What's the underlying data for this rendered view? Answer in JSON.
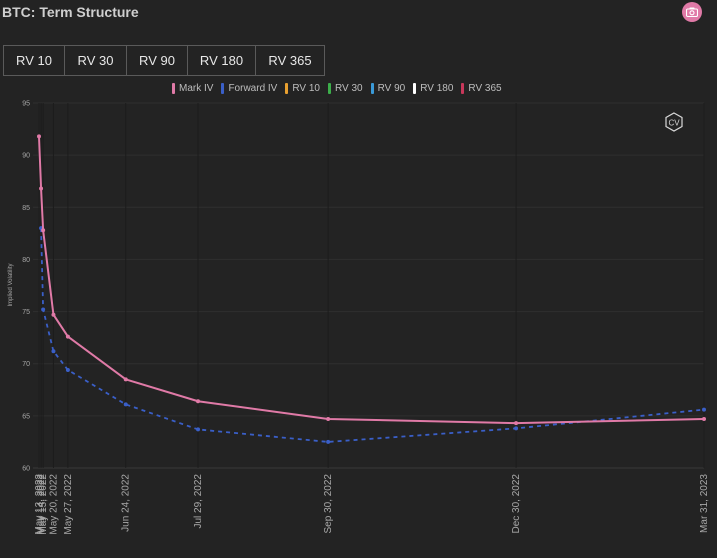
{
  "header": {
    "title": "BTC: Term Structure"
  },
  "toolbar": {
    "buttons": [
      {
        "label": "RV 10"
      },
      {
        "label": "RV 30"
      },
      {
        "label": "RV 90"
      },
      {
        "label": "RV 180"
      },
      {
        "label": "RV 365"
      }
    ]
  },
  "icons": {
    "screenshot": "camera-icon",
    "watermark": "cv-logo-icon"
  },
  "watermark_text": "CV",
  "chart_data": {
    "type": "line",
    "title": "",
    "xlabel": "",
    "ylabel": "Implied Volatility",
    "ylim": [
      60,
      95
    ],
    "yticks": [
      60,
      65,
      70,
      75,
      80,
      85,
      90,
      95
    ],
    "xlim": [
      "2022-05-13",
      "2023-03-31"
    ],
    "xticks": [
      "May 13, 2022",
      "May 14, 2022",
      "May 15, 2022",
      "May 20, 2022",
      "May 27, 2022",
      "Jun 24, 2022",
      "Jul 29, 2022",
      "Sep 30, 2022",
      "Dec 30, 2022",
      "Mar 31, 2023"
    ],
    "xtick_dates": [
      "2022-05-13",
      "2022-05-14",
      "2022-05-15",
      "2022-05-20",
      "2022-05-27",
      "2022-06-24",
      "2022-07-29",
      "2022-09-30",
      "2022-12-30",
      "2023-03-31"
    ],
    "grid": true,
    "legend_position": "top-center",
    "legend": [
      "Mark IV",
      "Forward IV",
      "RV 10",
      "RV 30",
      "RV 90",
      "RV 180",
      "RV 365"
    ],
    "legend_colors": [
      "#e07aa7",
      "#3a5fc8",
      "#e8a030",
      "#3cae4a",
      "#3a9ad8",
      "#ffffff",
      "#c8375a"
    ],
    "series": [
      {
        "name": "Mark IV",
        "color": "#e07aa7",
        "style": "solid",
        "x": [
          "2022-05-13",
          "2022-05-14",
          "2022-05-15",
          "2022-05-20",
          "2022-05-27",
          "2022-06-24",
          "2022-07-29",
          "2022-09-30",
          "2022-12-30",
          "2023-03-31"
        ],
        "y": [
          91.8,
          86.8,
          82.8,
          74.7,
          72.6,
          68.5,
          66.4,
          64.7,
          64.3,
          64.7
        ]
      },
      {
        "name": "Forward IV",
        "color": "#3a5fc8",
        "style": "dashed",
        "x": [
          "2022-05-14",
          "2022-05-15",
          "2022-05-20",
          "2022-05-27",
          "2022-06-24",
          "2022-07-29",
          "2022-09-30",
          "2022-12-30",
          "2023-03-31"
        ],
        "y": [
          83.0,
          75.2,
          71.2,
          69.4,
          66.1,
          63.7,
          62.5,
          63.8,
          65.6
        ]
      }
    ]
  }
}
